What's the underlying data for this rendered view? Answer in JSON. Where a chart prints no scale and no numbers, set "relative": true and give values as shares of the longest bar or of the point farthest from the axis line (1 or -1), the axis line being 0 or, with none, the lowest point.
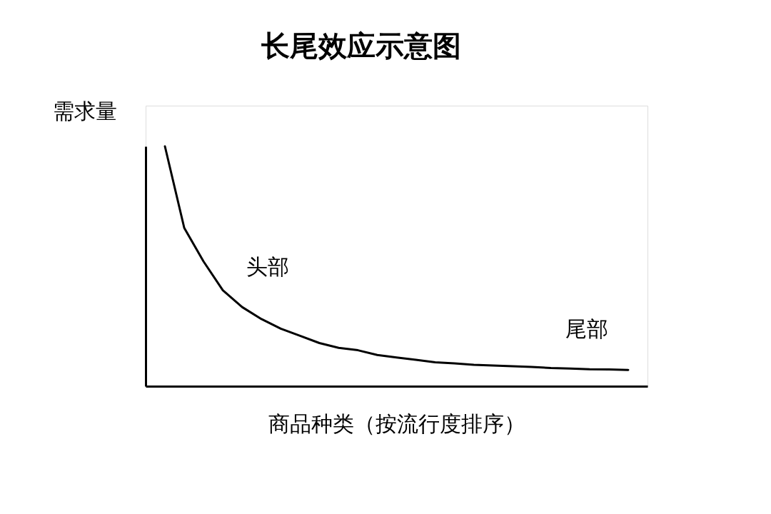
{
  "chart_data": {
    "type": "line",
    "title": "长尾效应示意图",
    "xlabel": "商品种类（按流行度排序）",
    "ylabel": "需求量",
    "relative": true,
    "color": "#000000",
    "line_style": "solid",
    "categories": [
      null,
      null,
      null,
      null,
      null,
      null,
      null,
      null,
      null,
      null,
      null,
      null,
      null,
      null,
      null,
      null,
      null,
      null,
      null,
      null,
      null,
      null,
      null,
      null,
      null
    ],
    "values": [
      1,
      0.66,
      0.52,
      0.4,
      0.33,
      0.28,
      0.24,
      0.21,
      0.18,
      0.16,
      0.15,
      0.13,
      0.12,
      0.11,
      0.1,
      0.095,
      0.089,
      0.086,
      0.083,
      0.08,
      0.076,
      0.074,
      0.071,
      0.07,
      0.068
    ],
    "annotations": [
      "头部",
      "尾部"
    ]
  }
}
